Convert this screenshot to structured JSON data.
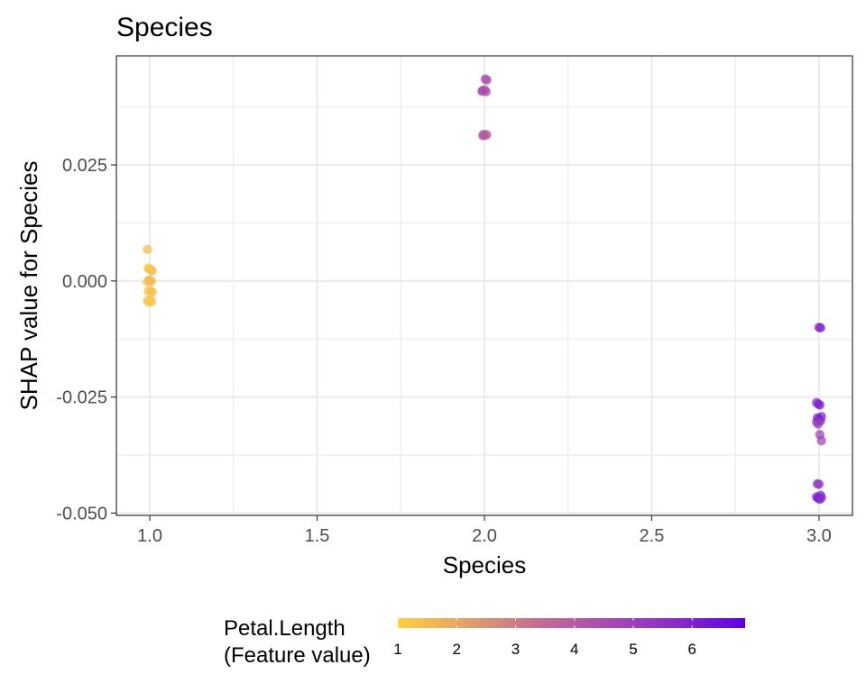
{
  "chart_data": {
    "type": "scatter",
    "title": "Species",
    "xlabel": "Species",
    "ylabel": "SHAP value for Species",
    "xlim": [
      0.9,
      3.1
    ],
    "ylim": [
      -0.0505,
      0.0485
    ],
    "x_ticks": [
      1.0,
      1.5,
      2.0,
      2.5,
      3.0
    ],
    "x_tick_labels": [
      "1.0",
      "1.5",
      "2.0",
      "2.5",
      "3.0"
    ],
    "y_ticks": [
      0.025,
      0.0,
      -0.025,
      -0.05
    ],
    "y_tick_labels": [
      "0.025",
      "0.000",
      "-0.025",
      "-0.050"
    ],
    "grid": true,
    "legend": {
      "title_lines": [
        "Petal.Length",
        "(Feature value)"
      ],
      "placement": "bottom",
      "range": [
        1,
        6.9
      ],
      "ticks": [
        "1",
        "2",
        "3",
        "4",
        "5",
        "6"
      ],
      "colors": [
        "#ffd13f",
        "#e0a06a",
        "#c46f90",
        "#a94bb0",
        "#8a2cc9",
        "#5b00e0"
      ]
    },
    "points": [
      {
        "x": 1.0,
        "y": 0.0068,
        "c": 1.5
      },
      {
        "x": 1.0,
        "y": 0.0026,
        "c": 1.4
      },
      {
        "x": 1.0,
        "y": 0.0024,
        "c": 1.3
      },
      {
        "x": 1.0,
        "y": 0.0022,
        "c": 1.5
      },
      {
        "x": 1.0,
        "y": 0.0028,
        "c": 1.2
      },
      {
        "x": 1.0,
        "y": 0.0001,
        "c": 1.4
      },
      {
        "x": 1.0,
        "y": -0.0001,
        "c": 1.5
      },
      {
        "x": 1.0,
        "y": -0.0002,
        "c": 1.3
      },
      {
        "x": 1.0,
        "y": 0.0002,
        "c": 1.6
      },
      {
        "x": 1.0,
        "y": -0.0021,
        "c": 1.4
      },
      {
        "x": 1.0,
        "y": -0.0024,
        "c": 1.5
      },
      {
        "x": 1.0,
        "y": -0.0022,
        "c": 1.3
      },
      {
        "x": 1.0,
        "y": -0.0041,
        "c": 1.4
      },
      {
        "x": 1.0,
        "y": -0.0044,
        "c": 1.6
      },
      {
        "x": 1.0,
        "y": -0.0043,
        "c": 1.5
      },
      {
        "x": 1.0,
        "y": -0.0046,
        "c": 1.1
      },
      {
        "x": 2.0,
        "y": 0.0435,
        "c": 4.5
      },
      {
        "x": 2.0,
        "y": 0.0433,
        "c": 4.4
      },
      {
        "x": 2.0,
        "y": 0.041,
        "c": 4.6
      },
      {
        "x": 2.0,
        "y": 0.0412,
        "c": 4.3
      },
      {
        "x": 2.0,
        "y": 0.0408,
        "c": 4.7
      },
      {
        "x": 2.0,
        "y": 0.0409,
        "c": 4.5
      },
      {
        "x": 2.0,
        "y": 0.0316,
        "c": 3.9
      },
      {
        "x": 2.0,
        "y": 0.0314,
        "c": 4.0
      },
      {
        "x": 2.0,
        "y": 0.0315,
        "c": 3.8
      },
      {
        "x": 2.0,
        "y": 0.0313,
        "c": 4.1
      },
      {
        "x": 3.0,
        "y": -0.01,
        "c": 5.8
      },
      {
        "x": 3.0,
        "y": -0.0101,
        "c": 6.0
      },
      {
        "x": 3.0,
        "y": -0.0262,
        "c": 5.6
      },
      {
        "x": 3.0,
        "y": -0.0265,
        "c": 5.8
      },
      {
        "x": 3.0,
        "y": -0.0267,
        "c": 6.1
      },
      {
        "x": 3.0,
        "y": -0.0292,
        "c": 6.0
      },
      {
        "x": 3.0,
        "y": -0.0295,
        "c": 5.9
      },
      {
        "x": 3.0,
        "y": -0.0298,
        "c": 6.3
      },
      {
        "x": 3.0,
        "y": -0.0301,
        "c": 5.7
      },
      {
        "x": 3.0,
        "y": -0.0304,
        "c": 5.4
      },
      {
        "x": 3.0,
        "y": -0.0308,
        "c": 5.1
      },
      {
        "x": 3.0,
        "y": -0.0331,
        "c": 5.0
      },
      {
        "x": 3.0,
        "y": -0.0344,
        "c": 4.9
      },
      {
        "x": 3.0,
        "y": -0.0437,
        "c": 5.5
      },
      {
        "x": 3.0,
        "y": -0.0438,
        "c": 5.3
      },
      {
        "x": 3.0,
        "y": -0.0462,
        "c": 6.1
      },
      {
        "x": 3.0,
        "y": -0.0465,
        "c": 5.9
      },
      {
        "x": 3.0,
        "y": -0.0468,
        "c": 6.4
      },
      {
        "x": 3.0,
        "y": -0.047,
        "c": 6.0
      },
      {
        "x": 3.0,
        "y": -0.0467,
        "c": 5.7
      }
    ]
  }
}
